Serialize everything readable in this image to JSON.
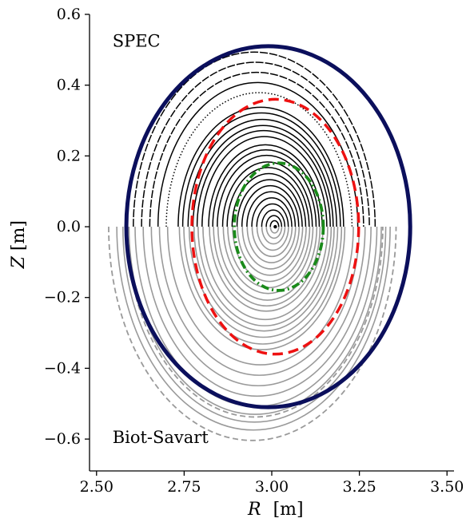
{
  "chart_data": {
    "type": "line",
    "xlabel_var": "R",
    "xlabel_unit": "[m]",
    "ylabel_var": "Z",
    "ylabel_unit": "[m]",
    "xlim": [
      2.48,
      3.52
    ],
    "ylim": [
      -0.69,
      0.6
    ],
    "xticks": [
      2.5,
      2.75,
      3.0,
      3.25,
      3.5
    ],
    "xtick_labels": [
      "2.50",
      "2.75",
      "3.00",
      "3.25",
      "3.50"
    ],
    "yticks": [
      -0.6,
      -0.4,
      -0.2,
      0.0,
      0.2,
      0.4,
      0.6
    ],
    "ytick_labels": [
      "−0.6",
      "−0.4",
      "−0.2",
      "0.0",
      "0.2",
      "0.4",
      "0.6"
    ],
    "annotations": [
      {
        "text": "SPEC",
        "R": 2.55,
        "Z": 0.525
      },
      {
        "text": "Biot-Savart",
        "R": 2.55,
        "Z": -0.595
      }
    ],
    "colors": {
      "boundary": "#0b0f5c",
      "spec_surfaces": "#000000",
      "biot_surfaces": "#9a9a9a",
      "red_surface": "#ee1111",
      "green_surface": "#1a8a1a"
    },
    "magnetic_axis": {
      "R": 3.01,
      "Z": 0.0
    },
    "boundary": {
      "R0": 2.99,
      "a": 0.405,
      "Z0": 0.0,
      "b": 0.51
    },
    "spec_surfaces": {
      "a_values": [
        0.012,
        0.022,
        0.033,
        0.045,
        0.057,
        0.069,
        0.081,
        0.093,
        0.105,
        0.117,
        0.128,
        0.141,
        0.152,
        0.162,
        0.178,
        0.19,
        0.2,
        0.212,
        0.225,
        0.236,
        0.265,
        0.285,
        0.305,
        0.325,
        0.345
      ],
      "elongation": 1.43
    },
    "biot_surfaces": {
      "a_values": [
        0.012,
        0.022,
        0.033,
        0.045,
        0.057,
        0.069,
        0.081,
        0.093,
        0.105,
        0.117,
        0.128,
        0.141,
        0.152,
        0.162,
        0.178,
        0.19,
        0.2,
        0.212,
        0.225,
        0.236,
        0.265,
        0.285,
        0.305,
        0.325,
        0.345,
        0.36,
        0.375,
        0.39
      ],
      "dashed_a_values": [
        0.365,
        0.41
      ],
      "elongation": 1.43
    },
    "red_surface": {
      "R0": 3.01,
      "a": 0.238,
      "b": 0.36
    },
    "green_surface": {
      "R0": 3.02,
      "a": 0.127,
      "b": 0.18
    }
  }
}
